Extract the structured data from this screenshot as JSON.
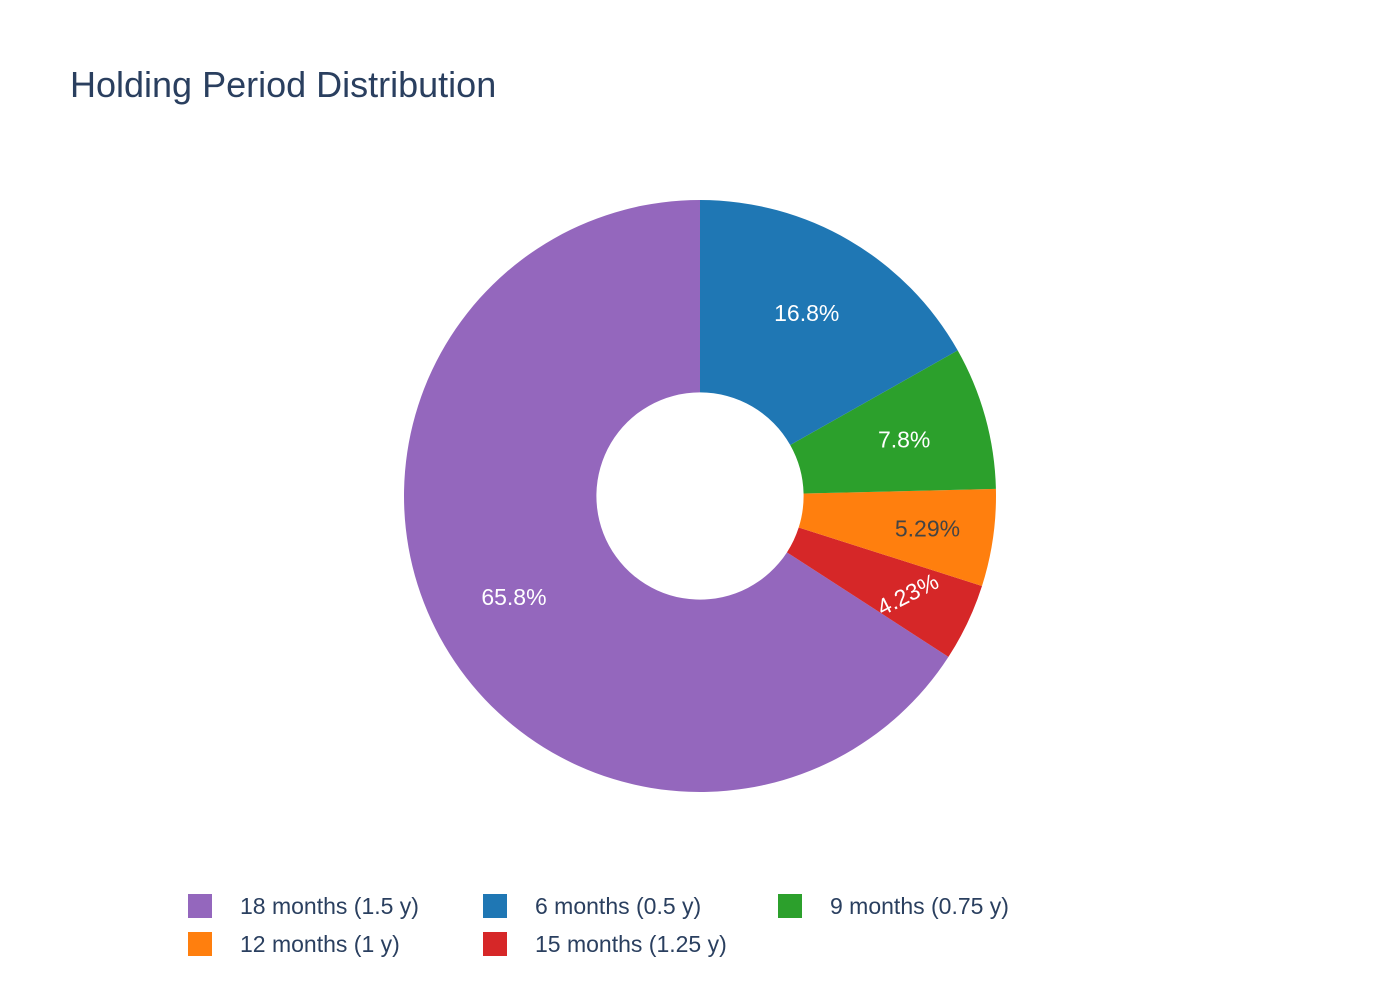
{
  "chart_data": {
    "type": "pie",
    "title": "Holding Period Distribution",
    "hole": 0.35,
    "slices": [
      {
        "label": "18 months (1.5 y)",
        "value": 65.8,
        "text": "65.8%",
        "color": "#9467bd",
        "text_color": "#ffffff"
      },
      {
        "label": "15 months (1.25 y)",
        "value": 4.23,
        "text": "4.23%",
        "color": "#d62728",
        "text_color": "#ffffff"
      },
      {
        "label": "12 months (1 y)",
        "value": 5.29,
        "text": "5.29%",
        "color": "#ff7f0e",
        "text_color": "#444444"
      },
      {
        "label": "9 months (0.75 y)",
        "value": 7.8,
        "text": "7.8%",
        "color": "#2ca02c",
        "text_color": "#ffffff"
      },
      {
        "label": "6 months (0.5 y)",
        "value": 16.8,
        "text": "16.8%",
        "color": "#1f77b4",
        "text_color": "#ffffff"
      }
    ],
    "legend": [
      {
        "label": "18 months (1.5 y)",
        "color": "#9467bd"
      },
      {
        "label": "6 months (0.5 y)",
        "color": "#1f77b4"
      },
      {
        "label": "9 months (0.75 y)",
        "color": "#2ca02c"
      },
      {
        "label": "12 months (1 y)",
        "color": "#ff7f0e"
      },
      {
        "label": "15 months (1.25 y)",
        "color": "#d62728"
      }
    ],
    "legend_position": "bottom"
  }
}
